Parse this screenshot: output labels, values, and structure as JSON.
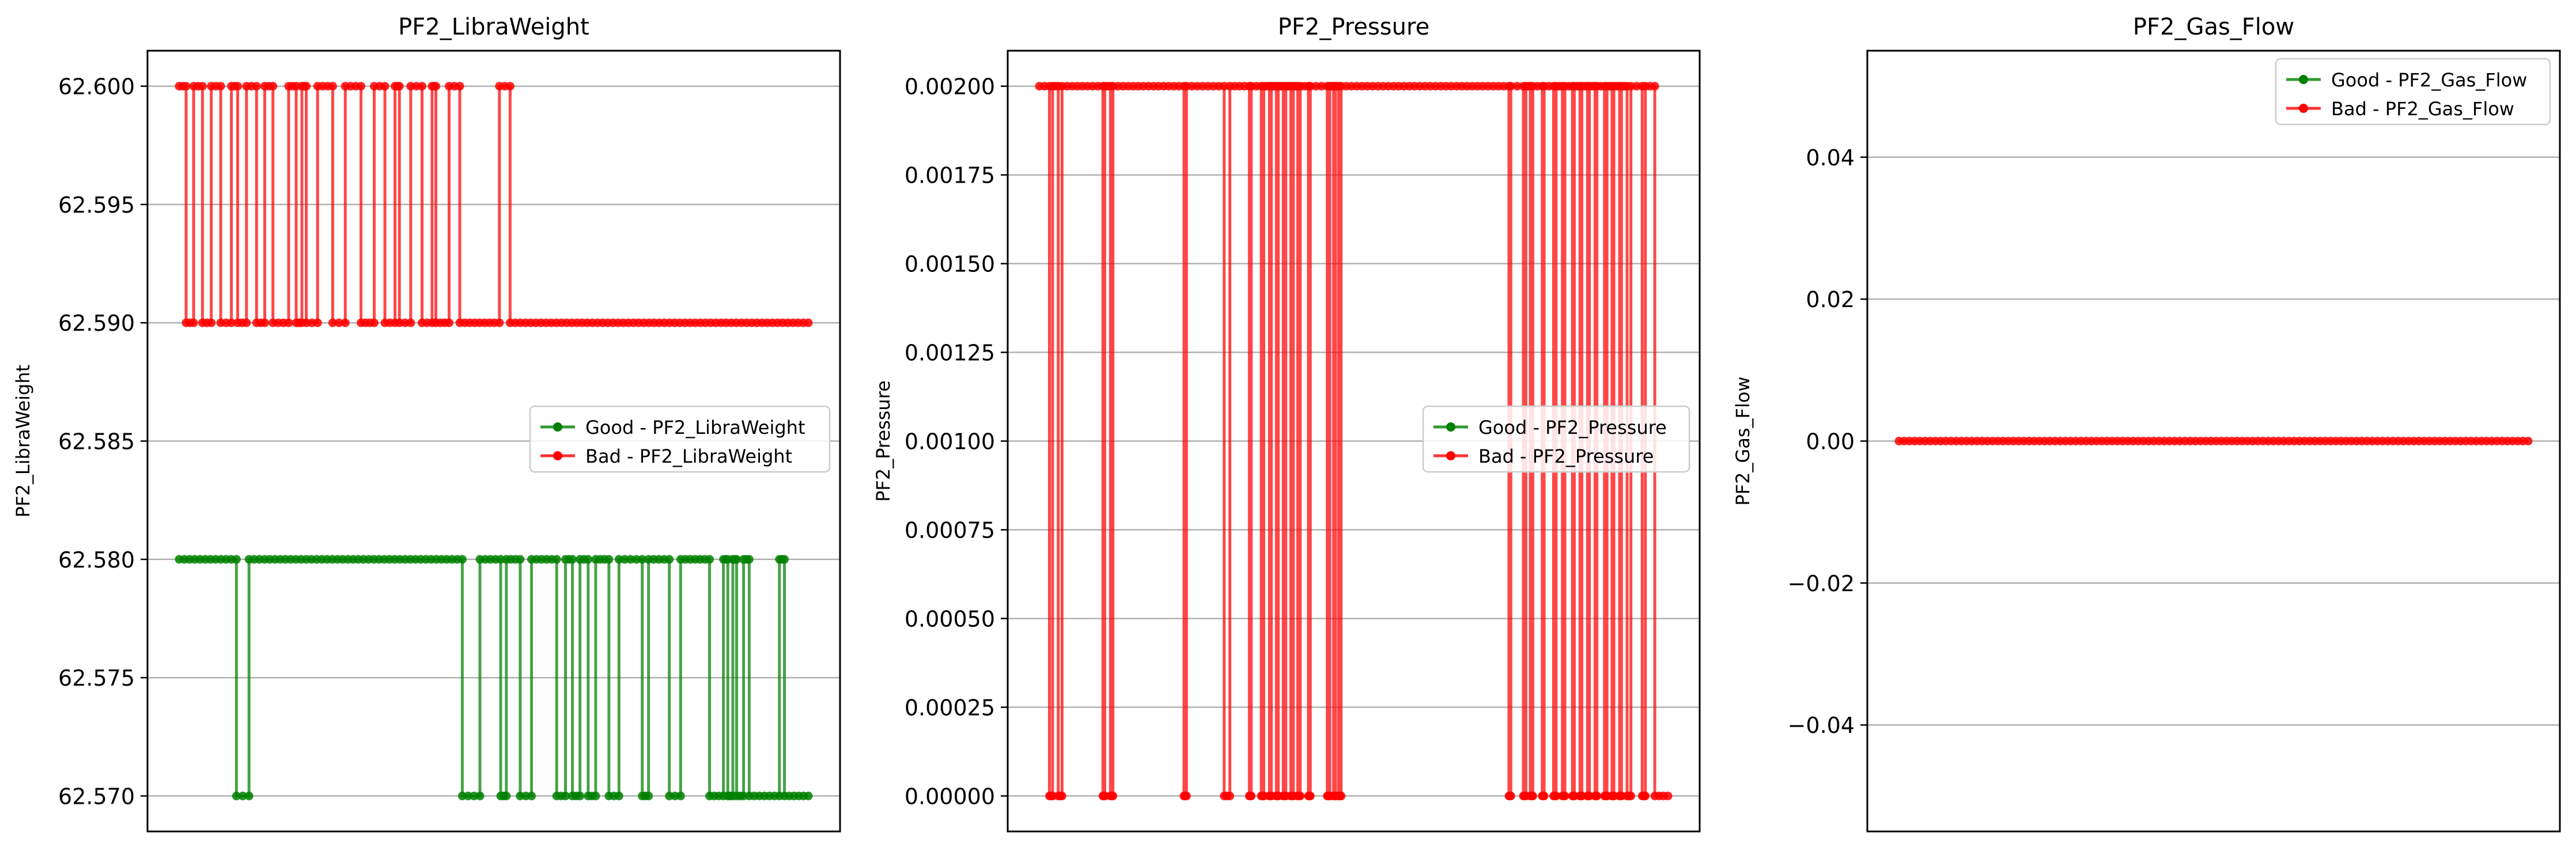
{
  "chart_data": [
    {
      "type": "line",
      "title": "PF2_LibraWeight",
      "xlabel": "",
      "ylabel": "PF2_LibraWeight",
      "ylim": [
        62.5685,
        62.6015
      ],
      "yticks": [
        62.57,
        62.575,
        62.58,
        62.585,
        62.59,
        62.595,
        62.6
      ],
      "ytick_labels": [
        "62.570",
        "62.575",
        "62.580",
        "62.585",
        "62.590",
        "62.595",
        "62.600"
      ],
      "x_ticks_shown": false,
      "grid": "horizontal",
      "legend_position": "center-right",
      "series": [
        {
          "name": "Good - PF2_LibraWeight",
          "color": "#008000",
          "x_range": [
            0.0,
            1.0
          ],
          "runs": [
            [
              0.0,
              0.091,
              62.58
            ],
            [
              0.091,
              0.111,
              62.57
            ],
            [
              0.111,
              0.45,
              62.58
            ],
            [
              0.45,
              0.478,
              62.57
            ],
            [
              0.478,
              0.511,
              62.58
            ],
            [
              0.511,
              0.52,
              62.57
            ],
            [
              0.52,
              0.542,
              62.58
            ],
            [
              0.542,
              0.56,
              62.57
            ],
            [
              0.56,
              0.6,
              62.58
            ],
            [
              0.6,
              0.614,
              62.57
            ],
            [
              0.614,
              0.625,
              62.58
            ],
            [
              0.625,
              0.637,
              62.57
            ],
            [
              0.637,
              0.65,
              62.58
            ],
            [
              0.65,
              0.662,
              62.57
            ],
            [
              0.662,
              0.683,
              62.58
            ],
            [
              0.683,
              0.699,
              62.57
            ],
            [
              0.699,
              0.736,
              62.58
            ],
            [
              0.736,
              0.746,
              62.57
            ],
            [
              0.746,
              0.779,
              62.58
            ],
            [
              0.779,
              0.797,
              62.57
            ],
            [
              0.797,
              0.843,
              62.58
            ],
            [
              0.843,
              0.865,
              62.57
            ],
            [
              0.865,
              0.872,
              62.58
            ],
            [
              0.872,
              0.88,
              62.57
            ],
            [
              0.88,
              0.886,
              62.58
            ],
            [
              0.886,
              0.897,
              62.57
            ],
            [
              0.897,
              0.906,
              62.58
            ],
            [
              0.906,
              0.954,
              62.57
            ],
            [
              0.954,
              0.962,
              62.58
            ],
            [
              0.962,
              1.0,
              62.57
            ]
          ]
        },
        {
          "name": "Bad - PF2_LibraWeight",
          "color": "#ff0000",
          "x_range": [
            0.0,
            1.0
          ],
          "runs": [
            [
              0.0,
              0.011,
              62.6
            ],
            [
              0.011,
              0.023,
              62.59
            ],
            [
              0.023,
              0.037,
              62.6
            ],
            [
              0.037,
              0.051,
              62.59
            ],
            [
              0.051,
              0.066,
              62.6
            ],
            [
              0.066,
              0.083,
              62.59
            ],
            [
              0.083,
              0.093,
              62.6
            ],
            [
              0.093,
              0.107,
              62.59
            ],
            [
              0.107,
              0.123,
              62.6
            ],
            [
              0.123,
              0.136,
              62.59
            ],
            [
              0.136,
              0.149,
              62.6
            ],
            [
              0.149,
              0.174,
              62.59
            ],
            [
              0.174,
              0.186,
              62.6
            ],
            [
              0.186,
              0.195,
              62.59
            ],
            [
              0.195,
              0.202,
              62.6
            ],
            [
              0.202,
              0.22,
              62.59
            ],
            [
              0.22,
              0.244,
              62.6
            ],
            [
              0.244,
              0.264,
              62.59
            ],
            [
              0.264,
              0.289,
              62.6
            ],
            [
              0.289,
              0.31,
              62.59
            ],
            [
              0.31,
              0.327,
              62.6
            ],
            [
              0.327,
              0.343,
              62.59
            ],
            [
              0.343,
              0.35,
              62.6
            ],
            [
              0.35,
              0.368,
              62.59
            ],
            [
              0.368,
              0.386,
              62.6
            ],
            [
              0.386,
              0.402,
              62.59
            ],
            [
              0.402,
              0.408,
              62.6
            ],
            [
              0.408,
              0.429,
              62.59
            ],
            [
              0.429,
              0.446,
              62.6
            ],
            [
              0.446,
              0.509,
              62.59
            ],
            [
              0.509,
              0.526,
              62.6
            ],
            [
              0.526,
              1.0,
              62.59
            ]
          ]
        }
      ]
    },
    {
      "type": "line",
      "title": "PF2_Pressure",
      "xlabel": "",
      "ylabel": "PF2_Pressure",
      "ylim": [
        -0.0001,
        0.0021
      ],
      "yticks": [
        0.0,
        0.00025,
        0.0005,
        0.00075,
        0.001,
        0.00125,
        0.0015,
        0.00175,
        0.002
      ],
      "ytick_labels": [
        "0.00000",
        "0.00025",
        "0.00050",
        "0.00075",
        "0.00100",
        "0.00125",
        "0.00150",
        "0.00175",
        "0.00200"
      ],
      "x_ticks_shown": false,
      "grid": "horizontal",
      "legend_position": "center-right",
      "series": [
        {
          "name": "Good - PF2_Pressure",
          "color": "#008000",
          "x_range": [
            0.0,
            1.0
          ],
          "runs": []
        },
        {
          "name": "Bad - PF2_Pressure",
          "color": "#ff0000",
          "x_range": [
            0.0,
            1.0
          ],
          "runs": [
            [
              0.0,
              0.016,
              0.002
            ],
            [
              0.016,
              0.021,
              0.0
            ],
            [
              0.021,
              0.03,
              0.002
            ],
            [
              0.03,
              0.036,
              0.0
            ],
            [
              0.036,
              0.101,
              0.002
            ],
            [
              0.101,
              0.104,
              0.0
            ],
            [
              0.104,
              0.113,
              0.002
            ],
            [
              0.113,
              0.117,
              0.0
            ],
            [
              0.117,
              0.23,
              0.002
            ],
            [
              0.23,
              0.234,
              0.0
            ],
            [
              0.234,
              0.294,
              0.002
            ],
            [
              0.294,
              0.303,
              0.0
            ],
            [
              0.303,
              0.334,
              0.002
            ],
            [
              0.334,
              0.337,
              0.0
            ],
            [
              0.337,
              0.353,
              0.002
            ],
            [
              0.353,
              0.357,
              0.0
            ],
            [
              0.357,
              0.366,
              0.002
            ],
            [
              0.366,
              0.369,
              0.0
            ],
            [
              0.369,
              0.377,
              0.002
            ],
            [
              0.377,
              0.38,
              0.0
            ],
            [
              0.38,
              0.388,
              0.002
            ],
            [
              0.388,
              0.392,
              0.0
            ],
            [
              0.392,
              0.4,
              0.002
            ],
            [
              0.4,
              0.404,
              0.0
            ],
            [
              0.404,
              0.411,
              0.002
            ],
            [
              0.411,
              0.415,
              0.0
            ],
            [
              0.415,
              0.428,
              0.002
            ],
            [
              0.428,
              0.431,
              0.0
            ],
            [
              0.431,
              0.458,
              0.002
            ],
            [
              0.458,
              0.462,
              0.0
            ],
            [
              0.462,
              0.468,
              0.002
            ],
            [
              0.468,
              0.471,
              0.0
            ],
            [
              0.471,
              0.476,
              0.002
            ],
            [
              0.476,
              0.48,
              0.0
            ],
            [
              0.48,
              0.747,
              0.002
            ],
            [
              0.747,
              0.75,
              0.0
            ],
            [
              0.75,
              0.77,
              0.002
            ],
            [
              0.77,
              0.774,
              0.0
            ],
            [
              0.774,
              0.781,
              0.002
            ],
            [
              0.781,
              0.785,
              0.0
            ],
            [
              0.785,
              0.8,
              0.002
            ],
            [
              0.8,
              0.803,
              0.0
            ],
            [
              0.803,
              0.818,
              0.002
            ],
            [
              0.818,
              0.822,
              0.0
            ],
            [
              0.822,
              0.832,
              0.002
            ],
            [
              0.832,
              0.836,
              0.0
            ],
            [
              0.836,
              0.848,
              0.002
            ],
            [
              0.848,
              0.851,
              0.0
            ],
            [
              0.851,
              0.86,
              0.002
            ],
            [
              0.86,
              0.863,
              0.0
            ],
            [
              0.863,
              0.872,
              0.002
            ],
            [
              0.872,
              0.875,
              0.0
            ],
            [
              0.875,
              0.884,
              0.002
            ],
            [
              0.884,
              0.887,
              0.0
            ],
            [
              0.887,
              0.899,
              0.002
            ],
            [
              0.899,
              0.903,
              0.0
            ],
            [
              0.903,
              0.911,
              0.002
            ],
            [
              0.911,
              0.914,
              0.0
            ],
            [
              0.914,
              0.923,
              0.002
            ],
            [
              0.923,
              0.926,
              0.0
            ],
            [
              0.926,
              0.935,
              0.002
            ],
            [
              0.935,
              0.941,
              0.0
            ],
            [
              0.941,
              0.959,
              0.002
            ],
            [
              0.959,
              0.964,
              0.0
            ],
            [
              0.964,
              0.979,
              0.002
            ],
            [
              0.979,
              1.0,
              0.0
            ]
          ]
        }
      ]
    },
    {
      "type": "line",
      "title": "PF2_Gas_Flow",
      "xlabel": "",
      "ylabel": "PF2_Gas_Flow",
      "ylim": [
        -0.055,
        0.055
      ],
      "yticks": [
        -0.04,
        -0.02,
        0.0,
        0.02,
        0.04
      ],
      "ytick_labels": [
        "−0.04",
        "−0.02",
        "0.00",
        "0.02",
        "0.04"
      ],
      "x_ticks_shown": false,
      "grid": "horizontal",
      "legend_position": "top-right",
      "series": [
        {
          "name": "Good - PF2_Gas_Flow",
          "color": "#008000",
          "x_range": [
            0.0,
            1.0
          ],
          "runs": []
        },
        {
          "name": "Bad - PF2_Gas_Flow",
          "color": "#ff0000",
          "x_range": [
            0.0,
            1.0
          ],
          "runs": [
            [
              0.0,
              1.0,
              0.0
            ]
          ]
        }
      ]
    }
  ]
}
